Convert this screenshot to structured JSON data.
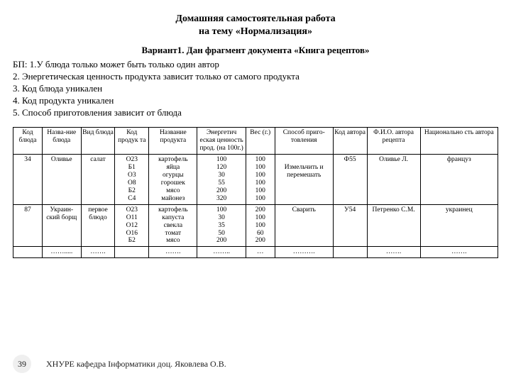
{
  "title_line1": "Домашняя самостоятельная работа",
  "title_line2": "на тему «Нормализация»",
  "variant": "Вариант1. Дан фрагмент документа «Книга рецептов»",
  "bp": [
    "БП: 1.У блюда только может быть только один автор",
    "2. Энергетическая ценность продукта зависит только от самого продукта",
    "3. Код блюда уникален",
    "4. Код продукта уникален",
    "5. Способ приготовления зависит от блюда"
  ],
  "columns": [
    "Код блюда",
    "Назва-ние блюда",
    "Вид блюда",
    "Код продук та",
    "Название продукта",
    "Энергетич еская ценность прод. (на 100г.)",
    "Вес (г.)",
    "Способ приго- товления",
    "Код автора",
    "Ф.И.О. автора рецепта",
    "Национально сть автора"
  ],
  "col_widths_pct": [
    6,
    8,
    7,
    7,
    10,
    10,
    6,
    12,
    7,
    11,
    16
  ],
  "rows": [
    {
      "code_dish": "34",
      "dish_name": "Оливье",
      "dish_type": "салат",
      "prod_codes": "О23\nБ1\nО3\nО8\nБ2\nС4",
      "prod_names": "картофель\nяйца\nогурцы\nгорошек\nмясо\nмайонез",
      "energy": "100\n120\n30\n55\n200\n320",
      "weight": "100\n100\n100\n100\n100\n100",
      "method": "\nИзмельчить и перемешать",
      "author_code": "Ф55",
      "author_fio": "Оливье Л.",
      "author_nat": "француз"
    },
    {
      "code_dish": "87",
      "dish_name": "Украин-ский борщ",
      "dish_type": "первое блюдо",
      "prod_codes": "О23\nО11\nО12\nО16\nБ2",
      "prod_names": "картофель\nкапуста\nсвекла\nтомат\nмясо",
      "energy": "100\n30\n35\n50\n200",
      "weight": "200\n100\n100\n60\n200",
      "method": "Сварить",
      "author_code": "У54",
      "author_fio": "Петренко С.М.",
      "author_nat": "украинец"
    },
    {
      "code_dish": "",
      "dish_name": "…….....",
      "dish_type": "…….",
      "prod_codes": "",
      "prod_names": "…….",
      "energy": "……..",
      "weight": "…",
      "method": "……….",
      "author_code": "",
      "author_fio": "…….",
      "author_nat": "……."
    }
  ],
  "page_number": "39",
  "footer_dept": "ХНУРЕ кафедра Інформатики доц. Яковлева О.В.",
  "colors": {
    "background": "#ffffff",
    "text": "#000000",
    "pagenum_bg": "#efefef",
    "border": "#000000"
  }
}
